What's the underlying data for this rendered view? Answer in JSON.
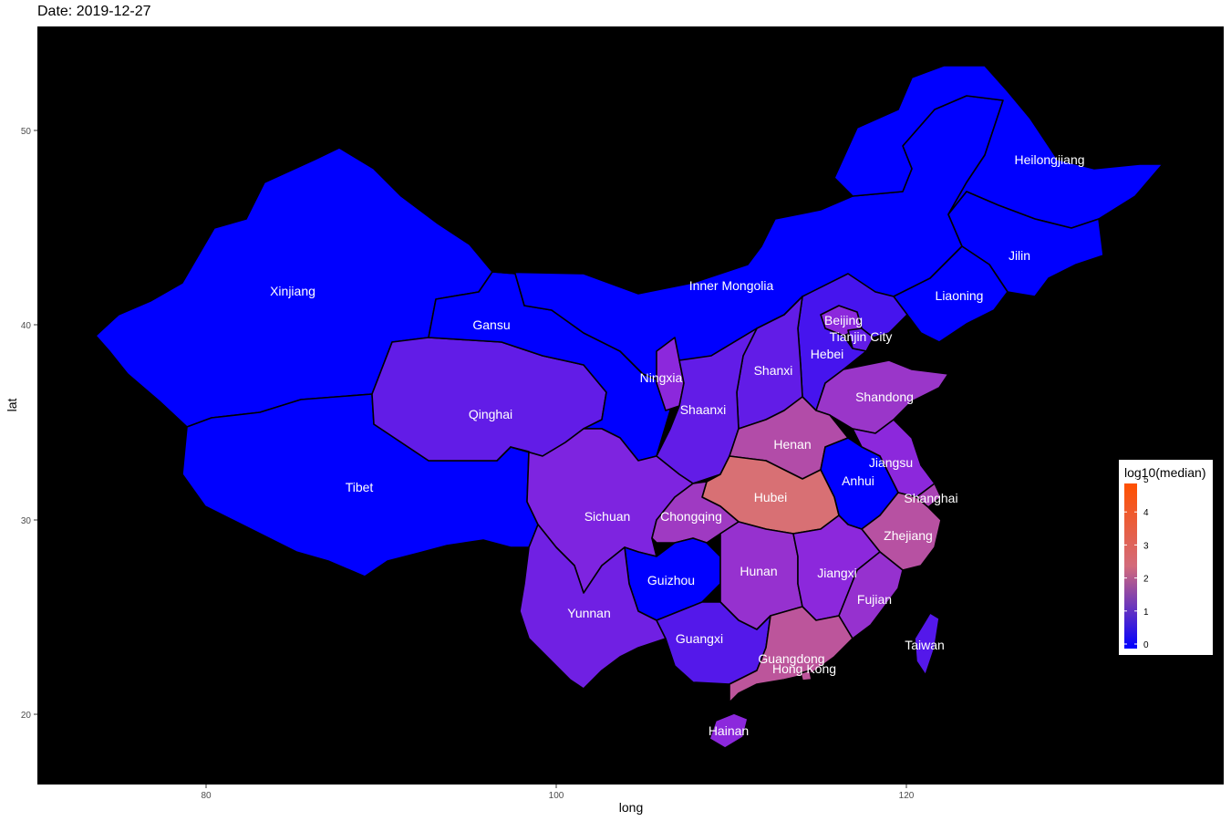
{
  "title": "Date: 2019-12-27",
  "axes": {
    "x_label": "long",
    "y_label": "lat",
    "x_ticks": [
      "80",
      "100",
      "120"
    ],
    "y_ticks": [
      "20",
      "30",
      "40",
      "50"
    ],
    "x_range": [
      70.3,
      138.2
    ],
    "y_range": [
      16.5,
      54.2
    ]
  },
  "legend": {
    "title": "log10(median)",
    "ticks": [
      "0",
      "1",
      "2",
      "3",
      "4",
      "5"
    ],
    "range": [
      0,
      5
    ],
    "color_low": "#0000ff",
    "color_mid": "#ff7f00",
    "color_high": "#ff5000",
    "placement": "right"
  },
  "colors": {
    "panel_background": "#000000",
    "page_background": "#ffffff",
    "border": "#000000",
    "label": "#ffffff"
  },
  "chart_data": {
    "type": "choropleth",
    "title": "Date: 2019-12-27",
    "xlabel": "long",
    "ylabel": "lat",
    "fill_variable": "log10(median)",
    "regions": [
      {
        "name": "Xinjiang",
        "value": 0
      },
      {
        "name": "Tibet",
        "value": 0
      },
      {
        "name": "Qinghai",
        "value": 0.7
      },
      {
        "name": "Gansu",
        "value": 0
      },
      {
        "name": "Inner Mongolia",
        "value": 0
      },
      {
        "name": "Heilongjiang",
        "value": 0
      },
      {
        "name": "Jilin",
        "value": 0
      },
      {
        "name": "Liaoning",
        "value": 0
      },
      {
        "name": "Beijing",
        "value": 1
      },
      {
        "name": "Tianjin City",
        "value": 0.7
      },
      {
        "name": "Hebei",
        "value": 0.5
      },
      {
        "name": "Shanxi",
        "value": 0.7
      },
      {
        "name": "Shandong",
        "value": 1.3
      },
      {
        "name": "Ningxia",
        "value": 1
      },
      {
        "name": "Shaanxi",
        "value": 0.7
      },
      {
        "name": "Henan",
        "value": 1.8
      },
      {
        "name": "Jiangsu",
        "value": 1
      },
      {
        "name": "Anhui",
        "value": 0
      },
      {
        "name": "Shanghai",
        "value": 1.6
      },
      {
        "name": "Hubei",
        "value": 2.6
      },
      {
        "name": "Sichuan",
        "value": 0.9
      },
      {
        "name": "Chongqing",
        "value": 1.4
      },
      {
        "name": "Zhejiang",
        "value": 1.9
      },
      {
        "name": "Guizhou",
        "value": 0
      },
      {
        "name": "Hunan",
        "value": 1.2
      },
      {
        "name": "Jiangxi",
        "value": 1
      },
      {
        "name": "Fujian",
        "value": 1.2
      },
      {
        "name": "Yunnan",
        "value": 0.8
      },
      {
        "name": "Guangxi",
        "value": 0.6
      },
      {
        "name": "Guangdong",
        "value": 2
      },
      {
        "name": "Hong Kong",
        "value": 2
      },
      {
        "name": "Taiwan",
        "value": 0.6
      },
      {
        "name": "Hainan",
        "value": 1
      }
    ]
  }
}
